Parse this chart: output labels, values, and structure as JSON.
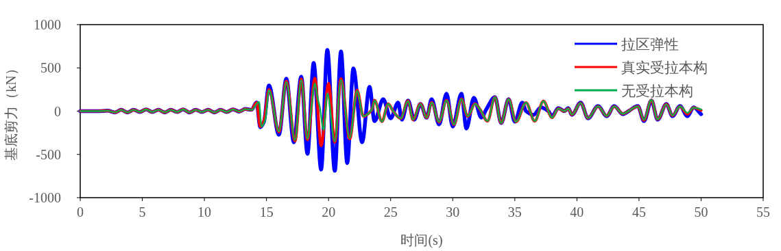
{
  "chart_data": {
    "type": "line",
    "xlabel": "时间(s)",
    "ylabel": "基底剪力（kN）",
    "xlim": [
      0,
      55
    ],
    "xticks": [
      0,
      5,
      10,
      15,
      20,
      25,
      30,
      35,
      40,
      45,
      50,
      55
    ],
    "ylim": [
      -1000,
      1000
    ],
    "yticks": [
      -1000,
      -500,
      0,
      500,
      1000
    ],
    "grid": false,
    "legend": "top right",
    "line_style": "solid",
    "marker": "none",
    "series": [
      {
        "name": "拉区弹性",
        "color": "#0000ff",
        "x": [
          0,
          1.5,
          2.2,
          2.8,
          3.3,
          3.8,
          4.3,
          4.8,
          5.3,
          5.8,
          6.3,
          6.8,
          7.3,
          7.8,
          8.3,
          8.8,
          9.3,
          9.8,
          10.3,
          10.8,
          11.3,
          11.8,
          12.3,
          12.8,
          13.3,
          13.8,
          14.2,
          14.5,
          14.8,
          15.2,
          16.0,
          16.6,
          17.2,
          17.8,
          18.3,
          18.8,
          19.4,
          19.9,
          20.5,
          21.0,
          21.5,
          22.0,
          22.7,
          23.3,
          23.7,
          24.4,
          25.0,
          25.6,
          25.9,
          26.4,
          26.9,
          27.4,
          27.9,
          28.3,
          28.9,
          29.5,
          30.0,
          30.7,
          31.1,
          31.7,
          32.3,
          32.7,
          33.4,
          33.9,
          34.5,
          35.0,
          35.6,
          35.9,
          36.5,
          37.1,
          37.7,
          38.0,
          38.5,
          39.0,
          39.3,
          39.6,
          40.3,
          40.9,
          41.7,
          42.4,
          43.0,
          43.7,
          44.2,
          44.9,
          45.4,
          46.0,
          46.5,
          47.2,
          47.7,
          48.3,
          48.9,
          49.4,
          50.0
        ],
        "values": [
          0,
          0,
          5,
          -15,
          15,
          -15,
          15,
          -10,
          20,
          -10,
          15,
          -15,
          15,
          -10,
          20,
          -15,
          15,
          -10,
          15,
          -15,
          15,
          -10,
          20,
          -5,
          25,
          15,
          100,
          -185,
          -120,
          296,
          -272,
          375,
          -360,
          400,
          -494,
          557,
          -675,
          707,
          -690,
          690,
          -600,
          494,
          -360,
          280,
          -115,
          138,
          -83,
          99,
          -99,
          122,
          -99,
          83,
          -75,
          138,
          -154,
          201,
          -178,
          201,
          -201,
          154,
          -75,
          20,
          162,
          -138,
          138,
          -122,
          99,
          0,
          -43,
          43,
          0,
          -59,
          35,
          0,
          35,
          -43,
          99,
          -83,
          59,
          -59,
          59,
          -35,
          4,
          59,
          -115,
          122,
          -99,
          83,
          -59,
          59,
          -59,
          43,
          -35
        ]
      },
      {
        "name": "真实受拉本构",
        "color": "#ff0000",
        "x": [
          0,
          1.5,
          2.2,
          2.8,
          3.3,
          3.8,
          4.3,
          4.8,
          5.3,
          5.8,
          6.3,
          6.8,
          7.3,
          7.8,
          8.3,
          8.8,
          9.3,
          9.8,
          10.3,
          10.8,
          11.3,
          11.8,
          12.3,
          12.8,
          13.3,
          13.8,
          14.2,
          14.5,
          14.8,
          15.2,
          16.0,
          16.6,
          17.3,
          17.8,
          18.3,
          18.9,
          19.4,
          20.0,
          20.5,
          21.0,
          21.7,
          22.3,
          22.8,
          23.5,
          23.7,
          24.3,
          24.8,
          25.2,
          25.8,
          26.4,
          26.8,
          27.4,
          27.9,
          28.3,
          28.9,
          29.5,
          30.1,
          30.7,
          31.2,
          31.8,
          32.2,
          32.8,
          33.4,
          33.9,
          34.5,
          35.1,
          35.9,
          36.6,
          37.3,
          38.0,
          38.5,
          39.0,
          39.3,
          39.6,
          40.3,
          40.9,
          41.7,
          42.4,
          43.0,
          43.7,
          44.2,
          44.9,
          45.4,
          46.0,
          46.5,
          47.2,
          47.7,
          48.3,
          48.9,
          49.4,
          50.0
        ],
        "values": [
          0,
          0,
          5,
          -15,
          15,
          -15,
          15,
          -10,
          20,
          -10,
          15,
          -15,
          15,
          -10,
          20,
          -15,
          15,
          -10,
          15,
          -15,
          15,
          -10,
          20,
          -5,
          25,
          15,
          100,
          -180,
          -110,
          250,
          -240,
          345,
          -345,
          370,
          -330,
          380,
          -400,
          320,
          -360,
          375,
          -320,
          240,
          -60,
          20,
          125,
          -120,
          85,
          0,
          -85,
          118,
          -100,
          85,
          -75,
          100,
          -125,
          125,
          -155,
          140,
          -60,
          85,
          20,
          -115,
          162,
          -138,
          138,
          -122,
          99,
          -115,
          115,
          -75,
          30,
          0,
          30,
          -40,
          95,
          -80,
          55,
          -55,
          55,
          -30,
          5,
          55,
          -105,
          128,
          -95,
          80,
          -50,
          55,
          -35,
          40,
          10
        ]
      },
      {
        "name": "无受拉本构",
        "color": "#00b050",
        "x": [
          0,
          1.5,
          2.2,
          2.8,
          3.3,
          3.8,
          4.3,
          4.8,
          5.3,
          5.8,
          6.3,
          6.8,
          7.3,
          7.8,
          8.3,
          8.8,
          9.3,
          9.8,
          10.3,
          10.8,
          11.3,
          11.8,
          12.3,
          12.8,
          13.3,
          13.8,
          14.4,
          14.6,
          14.9,
          15.2,
          16.0,
          16.6,
          17.3,
          17.8,
          18.3,
          18.6,
          18.9,
          19.1,
          19.3,
          19.6,
          19.9,
          20.5,
          21.0,
          21.7,
          22.3,
          22.8,
          23.5,
          23.7,
          24.3,
          24.8,
          25.2,
          25.8,
          26.4,
          26.8,
          27.4,
          27.9,
          28.3,
          28.9,
          29.5,
          30.1,
          30.7,
          31.2,
          31.8,
          32.2,
          32.8,
          33.4,
          33.9,
          34.5,
          35.1,
          35.9,
          36.6,
          37.3,
          38.0,
          38.5,
          39.0,
          39.3,
          39.6,
          40.3,
          40.9,
          41.7,
          42.4,
          43.0,
          43.7,
          44.2,
          44.9,
          45.4,
          46.0,
          46.5,
          47.2,
          47.7,
          48.3,
          48.9,
          49.4,
          50.0
        ],
        "values": [
          0,
          0,
          5,
          -15,
          15,
          -15,
          15,
          -10,
          20,
          -10,
          15,
          -15,
          15,
          -10,
          20,
          -15,
          15,
          -10,
          15,
          -15,
          15,
          -10,
          20,
          -5,
          25,
          15,
          107,
          -178,
          -99,
          241,
          -233,
          336,
          -336,
          360,
          -320,
          20,
          320,
          162,
          43,
          -217,
          201,
          -352,
          360,
          -312,
          233,
          -59,
          20,
          122,
          -122,
          83,
          0,
          -83,
          115,
          -99,
          83,
          -75,
          99,
          -122,
          122,
          -154,
          138,
          -59,
          83,
          20,
          -115,
          162,
          -138,
          138,
          -122,
          99,
          -115,
          115,
          -75,
          30,
          0,
          30,
          -40,
          95,
          -80,
          55,
          -55,
          55,
          -30,
          5,
          55,
          -99,
          130,
          -95,
          80,
          -50,
          55,
          -20,
          40,
          20
        ]
      }
    ]
  }
}
